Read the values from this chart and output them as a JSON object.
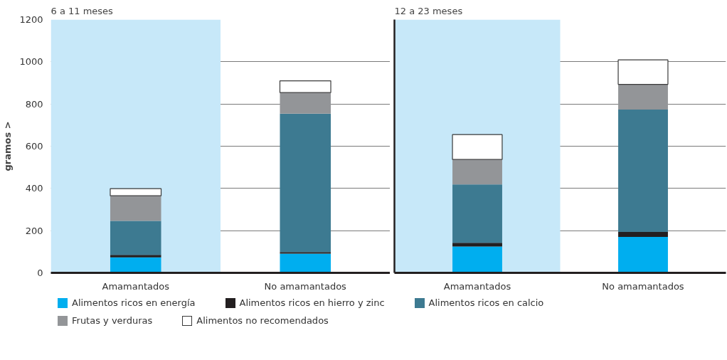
{
  "chart_data": [
    {
      "type": "bar",
      "title": "6 a 11 meses",
      "ylabel": "gramos >",
      "stacked": true,
      "categories": [
        "Amamantados",
        "No amamantados"
      ],
      "series": [
        {
          "name": "Alimentos ricos en energía",
          "color": "#00aeef",
          "values": [
            73,
            91
          ]
        },
        {
          "name": "Alimentos ricos en hierro y zinc",
          "color": "#231f20",
          "values": [
            12,
            8
          ]
        },
        {
          "name": "Alimentos ricos en calcio",
          "color": "#3d7a91",
          "values": [
            161,
            655
          ]
        },
        {
          "name": "Frutas y verduras",
          "color": "#939598",
          "values": [
            119,
            100
          ]
        },
        {
          "name": "Alimentos no recomendados",
          "color": "#ffffff",
          "values": [
            34,
            56
          ]
        }
      ],
      "ylim": [
        0,
        1200
      ],
      "yticks": [
        0,
        200,
        400,
        600,
        800,
        1000,
        1200
      ],
      "grid": "y",
      "legend": "bottom",
      "bands": [
        {
          "axis": "x",
          "from": "Amamantados",
          "to": "Amamantados",
          "color": "#c7e8f9"
        }
      ]
    },
    {
      "type": "bar",
      "title": "12 a 23 meses",
      "stacked": true,
      "categories": [
        "Amamantados",
        "No amamantados"
      ],
      "series": [
        {
          "color": "#00aeef",
          "values": [
            125,
            170
          ]
        },
        {
          "color": "#231f20",
          "values": [
            17,
            24
          ]
        },
        {
          "color": "#3d7a91",
          "values": [
            277,
            580
          ]
        },
        {
          "color": "#939598",
          "values": [
            118,
            119
          ]
        },
        {
          "color": "#ffffff",
          "values": [
            118,
            116
          ]
        }
      ],
      "ylim": [
        0,
        1200
      ],
      "yticks": [
        0,
        200,
        400,
        600,
        800,
        1000,
        1200
      ],
      "grid": "y",
      "tick_labels": "x",
      "bands": [
        {
          "axis": "x",
          "from": "Amamantados",
          "to": "Amamantados",
          "color": "#c7e8f9"
        }
      ]
    }
  ]
}
